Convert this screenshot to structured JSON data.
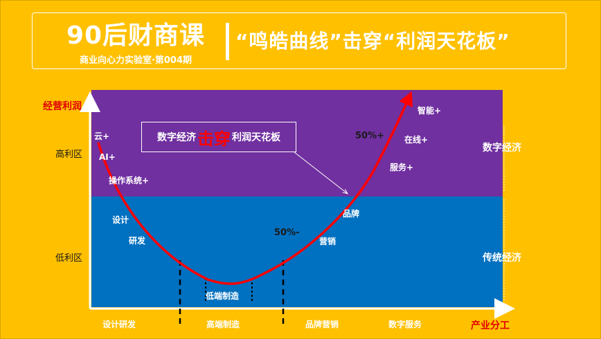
{
  "header": {
    "title": "90后财商课",
    "subtitle": "商业向心力实验室·第004期",
    "headline": "“鸣皓曲线”击穿“利润天花板”"
  },
  "axes": {
    "y_label": "经营利润",
    "x_label": "产业分工",
    "y_high": "高利区",
    "y_low": "低利区",
    "x_categories": [
      "设计研发",
      "高端制造",
      "品牌营销",
      "数字服务"
    ]
  },
  "zones": {
    "digital": "数字经济",
    "traditional": "传统经济"
  },
  "callout": {
    "left": "数字经济",
    "emphasis": "击穿",
    "right": "利润天花板"
  },
  "curve_labels": {
    "cloud": "云+",
    "ai": "AI+",
    "os": "操作系统+",
    "design": "设计",
    "rd": "研发",
    "low_mfg": "低端制造",
    "marketing": "营销",
    "brand": "品牌",
    "service": "服务+",
    "online": "在线+",
    "smart": "智能+",
    "pct_low": "50%-",
    "pct_high": "50%+"
  },
  "colors": {
    "background": "#FFC000",
    "digital_band": "#7030A0",
    "traditional_band": "#0070C0",
    "curve": "#FF0000"
  }
}
